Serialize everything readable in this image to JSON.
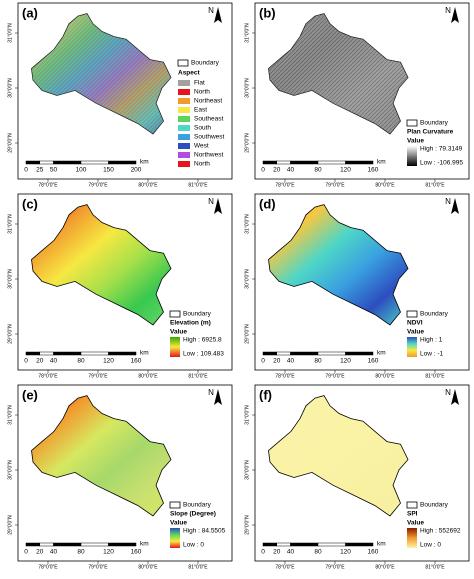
{
  "panels": [
    {
      "label": "(a)",
      "north": "N",
      "boundary": "Boundary",
      "legend_title": "Aspect",
      "classes": [
        {
          "name": "Flat",
          "color": "#a0a0a0"
        },
        {
          "name": "North",
          "color": "#e8141c"
        },
        {
          "name": "Northeast",
          "color": "#f29a2e"
        },
        {
          "name": "East",
          "color": "#f6e842"
        },
        {
          "name": "Southeast",
          "color": "#5fd35a"
        },
        {
          "name": "South",
          "color": "#4ed6c6"
        },
        {
          "name": "Southwest",
          "color": "#3aa0e0"
        },
        {
          "name": "West",
          "color": "#2c4ec0"
        },
        {
          "name": "Northwest",
          "color": "#b04ce0"
        },
        {
          "name": "North",
          "color": "#e8141c"
        }
      ],
      "scale_ticks": [
        0,
        25,
        50,
        100,
        150,
        200
      ],
      "scale_unit": "km",
      "x_labels": [
        "78°0'0\"E",
        "79°0'0\"E",
        "80°0'0\"E",
        "81°0'0\"E"
      ],
      "y_labels": [
        "31°0'0\"N",
        "30°0'0\"N",
        "29°0'0\"N"
      ]
    },
    {
      "label": "(b)",
      "north": "N",
      "boundary": "Boundary",
      "legend_title": "Plan Curvature",
      "value_title": "Value",
      "high": "High : 79.3149",
      "low": "Low : -106.995",
      "ramp": [
        "#ffffff",
        "#000000"
      ],
      "scale_ticks": [
        0,
        20,
        40,
        80,
        120,
        160
      ],
      "scale_unit": "km",
      "x_labels": [
        "78°0'0\"E",
        "79°0'0\"E",
        "80°0'0\"E",
        "81°0'0\"E"
      ],
      "y_labels": [
        "31°0'0\"N",
        "30°0'0\"N",
        "29°0'0\"N"
      ]
    },
    {
      "label": "(c)",
      "north": "N",
      "boundary": "Boundary",
      "legend_title": "Elevation (m)",
      "value_title": "Value",
      "high": "High : 6925.8",
      "low": "Low : 109.483",
      "ramp": [
        "#38a800",
        "#f6e842",
        "#e8141c"
      ],
      "scale_ticks": [
        0,
        20,
        40,
        80,
        120,
        160
      ],
      "scale_unit": "km",
      "x_labels": [
        "78°0'0\"E",
        "79°0'0\"E",
        "80°0'0\"E",
        "81°0'0\"E"
      ],
      "y_labels": [
        "31°0'0\"N",
        "30°0'0\"N",
        "29°0'0\"N"
      ]
    },
    {
      "label": "(d)",
      "north": "N",
      "boundary": "Boundary",
      "legend_title": "NDVI",
      "value_title": "Value",
      "high": "High : 1",
      "low": "Low : -1",
      "ramp": [
        "#2c4ec0",
        "#4ed6c6",
        "#f6e842",
        "#f29a2e"
      ],
      "scale_ticks": [
        0,
        20,
        40,
        80,
        120,
        160
      ],
      "scale_unit": "km",
      "x_labels": [
        "78°0'0\"E",
        "79°0'0\"E",
        "80°0'0\"E",
        "81°0'0\"E"
      ],
      "y_labels": [
        "31°0'0\"N",
        "30°0'0\"N",
        "29°0'0\"N"
      ]
    },
    {
      "label": "(e)",
      "north": "N",
      "boundary": "Boundary",
      "legend_title": "Slope (Degree)",
      "value_title": "Value",
      "high": "High : 84.5505",
      "low": "Low : 0",
      "ramp": [
        "#2c4ec0",
        "#5fd35a",
        "#f6e842",
        "#e8141c"
      ],
      "scale_ticks": [
        0,
        20,
        40,
        80,
        120,
        160
      ],
      "scale_unit": "km",
      "x_labels": [
        "78°0'0\"E",
        "79°0'0\"E",
        "80°0'0\"E",
        "81°0'0\"E"
      ],
      "y_labels": [
        "31°0'0\"N",
        "30°0'0\"N",
        "29°0'0\"N"
      ]
    },
    {
      "label": "(f)",
      "north": "N",
      "boundary": "Boundary",
      "legend_title": "SPI",
      "value_title": "Value",
      "high": "High : 552692",
      "low": "Low : 0",
      "ramp": [
        "#8b1a00",
        "#f29a2e",
        "#fbf3a8"
      ],
      "scale_ticks": [
        0,
        20,
        40,
        80,
        120,
        160
      ],
      "scale_unit": "km",
      "x_labels": [
        "78°0'0\"E",
        "79°0'0\"E",
        "80°0'0\"E",
        "81°0'0\"E"
      ],
      "y_labels": [
        "31°0'0\"N",
        "30°0'0\"N",
        "29°0'0\"N"
      ]
    }
  ]
}
